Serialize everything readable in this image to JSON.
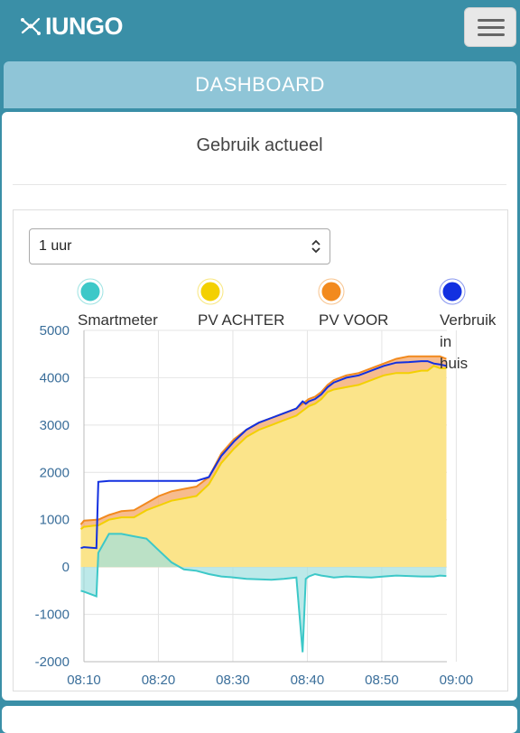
{
  "header": {
    "brand": "IUNGO",
    "logo_icon": "iungo-network-icon",
    "menu_icon": "hamburger-icon"
  },
  "dashboard_label": "DASHBOARD",
  "card": {
    "title": "Gebruik actueel"
  },
  "range_select": {
    "value": "1 uur"
  },
  "colors": {
    "smartmeter": "#3cc8c8",
    "pv_achter": "#f3d000",
    "pv_voor": "#f28a1e",
    "verbruik": "#1230e0"
  },
  "chart_data": {
    "type": "area",
    "title": "",
    "xlabel": "",
    "ylabel": "",
    "ylim": [
      -2000,
      5000
    ],
    "yticks": [
      -2000,
      -1000,
      0,
      1000,
      2000,
      3000,
      4000,
      5000
    ],
    "x_tick_labels": [
      "08:10",
      "08:20",
      "08:30",
      "08:40",
      "08:50",
      "09:00"
    ],
    "x_unit": "minutes after 08:00",
    "x_range": [
      10,
      68
    ],
    "grid": true,
    "legend": [
      "Smartmeter",
      "PV ACHTER",
      "PV VOOR",
      "Verbruik in huis"
    ],
    "x": [
      9.5,
      10,
      12,
      12.3,
      14,
      16,
      18,
      20,
      22,
      24,
      26,
      28,
      30,
      32,
      34,
      36,
      38,
      40,
      42,
      44,
      45,
      45.5,
      46,
      47,
      48,
      49,
      50,
      52,
      54,
      56,
      58,
      60,
      62,
      64,
      65,
      66,
      67,
      68
    ],
    "series": [
      {
        "name": "Smartmeter",
        "values": [
          -500,
          -520,
          -620,
          300,
          700,
          700,
          650,
          600,
          350,
          100,
          -50,
          -80,
          -150,
          -200,
          -220,
          -250,
          -260,
          -270,
          -250,
          -220,
          -1800,
          -250,
          -200,
          -150,
          -180,
          -200,
          -220,
          -200,
          -210,
          -220,
          -200,
          -180,
          -190,
          -200,
          -200,
          -200,
          -180,
          -190
        ]
      },
      {
        "name": "PV ACHTER",
        "values": [
          800,
          850,
          880,
          880,
          1000,
          1050,
          1050,
          1200,
          1300,
          1400,
          1450,
          1500,
          1750,
          2200,
          2500,
          2750,
          2900,
          3000,
          3100,
          3200,
          3300,
          3350,
          3400,
          3450,
          3550,
          3700,
          3750,
          3800,
          3850,
          3950,
          4050,
          4100,
          4100,
          4150,
          4150,
          4250,
          4200,
          4200
        ]
      },
      {
        "name": "PV VOOR",
        "values": [
          900,
          980,
          1000,
          1000,
          1100,
          1180,
          1200,
          1350,
          1500,
          1600,
          1650,
          1700,
          1900,
          2400,
          2700,
          2900,
          3050,
          3150,
          3250,
          3350,
          3450,
          3500,
          3550,
          3600,
          3700,
          3850,
          3950,
          4050,
          4100,
          4200,
          4300,
          4400,
          4450,
          4450,
          4450,
          4450,
          4450,
          4400
        ]
      },
      {
        "name": "Verbruik in huis",
        "values": [
          400,
          420,
          400,
          1800,
          1820,
          1820,
          1820,
          1820,
          1820,
          1820,
          1820,
          1820,
          1900,
          2350,
          2650,
          2900,
          3050,
          3150,
          3250,
          3350,
          3500,
          3450,
          3500,
          3550,
          3650,
          3800,
          3900,
          4000,
          4050,
          4150,
          4250,
          4320,
          4330,
          4350,
          4350,
          4300,
          4280,
          4250
        ]
      }
    ]
  }
}
